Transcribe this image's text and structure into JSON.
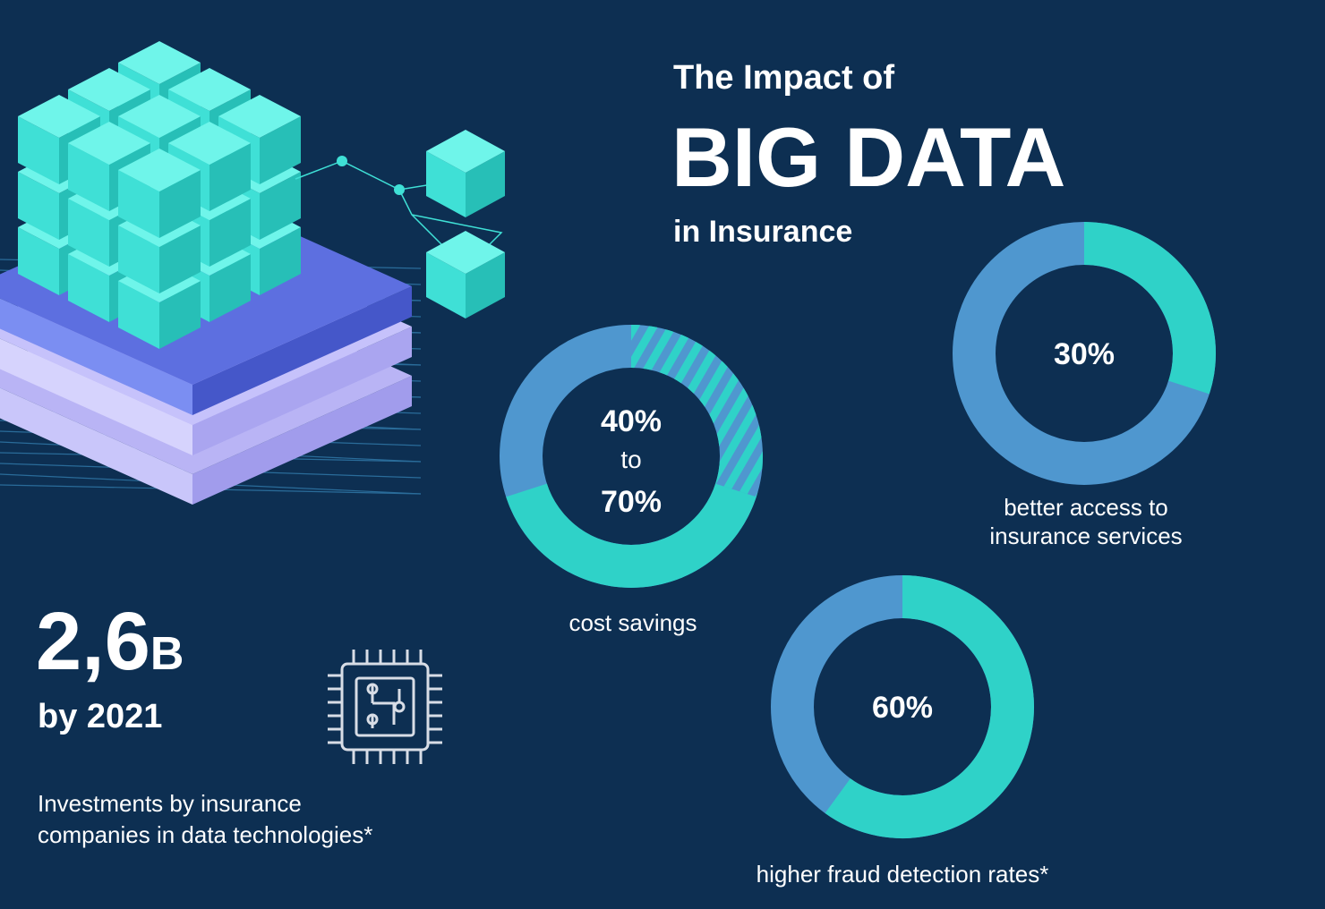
{
  "header": {
    "line1": "The Impact of",
    "line2": "BIG DATA",
    "line3": "in Insurance"
  },
  "stat": {
    "amount": "2,6",
    "unit": "B",
    "period": "by 2021",
    "caption_lines": [
      "Investments by insurance",
      "companies in data technologies*"
    ]
  },
  "donuts": [
    {
      "values": [
        40,
        70
      ],
      "value_labels": [
        "40%",
        "70%"
      ],
      "joiner": "to",
      "caption_lines": [
        "cost savings"
      ]
    },
    {
      "values": [
        30
      ],
      "value_labels": [
        "30%"
      ],
      "caption_lines": [
        "better access to",
        "insurance services"
      ]
    },
    {
      "values": [
        60
      ],
      "value_labels": [
        "60%"
      ],
      "caption_lines": [
        "higher fraud detection rates*"
      ]
    }
  ]
}
